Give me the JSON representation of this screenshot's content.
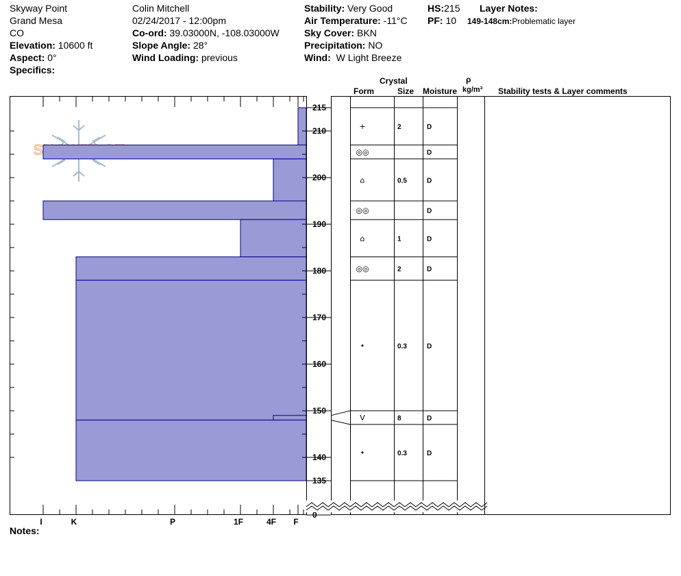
{
  "header": {
    "location": "Skyway Point",
    "range": "Grand Mesa",
    "state": "CO",
    "elevation_label": "Elevation:",
    "elevation_value": "10600 ft",
    "aspect_label": "Aspect:",
    "aspect_value": "0°",
    "specifics_label": "Specifics:",
    "observer": "Colin Mitchell",
    "datetime": "02/24/2017 - 12:00pm",
    "coord_label": "Co-ord:",
    "coord_value": "39.03000N, -108.03000W",
    "slope_label": "Slope Angle:",
    "slope_value": "28°",
    "wind_loading_label": "Wind Loading:",
    "wind_loading_value": "previous",
    "stability_label": "Stability:",
    "stability_value": "Very Good",
    "air_temp_label": "Air Temperature:",
    "air_temp_value": "-11°C",
    "sky_label": "Sky Cover:",
    "sky_value": "BKN",
    "precip_label": "Precipitation:",
    "precip_value": "NO",
    "wind_label": "Wind:",
    "wind_value": "W Light Breeze",
    "hs_label": "HS:",
    "hs_value": "215",
    "pf_label": "PF:",
    "pf_value": "10",
    "layer_notes_label": "Layer Notes:",
    "layer_note_range": "149-148cm:",
    "layer_note_text": "Problematic layer"
  },
  "table_headers": {
    "crystal": "Crystal",
    "form": "Form",
    "size": "Size",
    "moisture": "Moisture",
    "rho": "ρ",
    "density_unit": "kg/m³",
    "stability_comments": "Stability tests & Layer comments"
  },
  "notes_label": "Notes:",
  "logo_text": "SNOWPILOT",
  "colors": {
    "layer_fill": "#9a9ad6",
    "layer_edge": "#00008b"
  },
  "chart_data": {
    "type": "bar",
    "orientation": "horizontal",
    "title": "",
    "xlabel": "",
    "ylabel": "",
    "x_hardness_ticks": [
      "I",
      "K",
      "P",
      "1F",
      "4F",
      "F"
    ],
    "y_ticks": [
      215,
      210,
      200,
      190,
      180,
      170,
      160,
      150,
      140,
      135,
      0
    ],
    "ylim": [
      130,
      216
    ],
    "y_break": true,
    "grid": false,
    "layers": [
      {
        "top": 215,
        "bottom": 207,
        "hardness": "F",
        "form": "+",
        "size": "2",
        "moisture": "D"
      },
      {
        "top": 207,
        "bottom": 204,
        "hardness": "I",
        "form": "◎◎",
        "size": "",
        "moisture": "D"
      },
      {
        "top": 204,
        "bottom": 195,
        "hardness": "4F",
        "form": "⌂",
        "size": "0.5",
        "moisture": "D"
      },
      {
        "top": 195,
        "bottom": 191,
        "hardness": "I",
        "form": "◎◎",
        "size": "",
        "moisture": "D"
      },
      {
        "top": 191,
        "bottom": 183,
        "hardness": "1F",
        "form": "⌂",
        "size": "1",
        "moisture": "D"
      },
      {
        "top": 183,
        "bottom": 178,
        "hardness": "K",
        "form": "◎◎",
        "size": "2",
        "moisture": "D"
      },
      {
        "top": 178,
        "bottom": 148,
        "hardness": "K",
        "form": "•",
        "size": "0.3",
        "moisture": "D"
      },
      {
        "top": 149,
        "bottom": 148,
        "hardness": "4F",
        "form": "V",
        "size": "8",
        "moisture": "D"
      },
      {
        "top": 148,
        "bottom": 135,
        "hardness": "K",
        "form": "•",
        "size": "0.3",
        "moisture": "D"
      }
    ]
  }
}
